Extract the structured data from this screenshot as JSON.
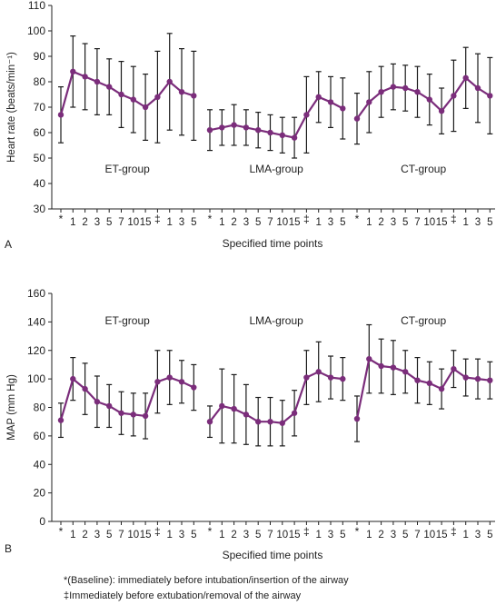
{
  "colors": {
    "series": "#7b2d7b",
    "errorbar": "#1a1a1a",
    "axis": "#222222"
  },
  "tick_labels": [
    "*",
    "1",
    "2",
    "3",
    "5",
    "7",
    "10",
    "15",
    "‡",
    "1",
    "3",
    "5"
  ],
  "chart_data": [
    {
      "type": "line",
      "panel_label": "A",
      "ylabel": "Heart rate (beats/min⁻¹)",
      "xlabel": "Specified time points",
      "ylim": [
        30,
        110
      ],
      "yticks": [
        30,
        40,
        50,
        60,
        70,
        80,
        90,
        100,
        110
      ],
      "grid": false,
      "legend": "none",
      "groups": [
        {
          "name": "ET-group",
          "values": [
            67,
            84,
            82,
            80,
            78,
            75,
            73,
            70,
            74,
            80,
            76,
            74.5
          ],
          "errors": [
            11,
            14,
            13,
            13,
            11,
            13,
            13,
            13,
            18,
            19,
            17,
            17.5
          ]
        },
        {
          "name": "LMA-group",
          "values": [
            61,
            62,
            63,
            62,
            61,
            60,
            59,
            58,
            67,
            74,
            72,
            69.5
          ],
          "errors": [
            8,
            7,
            8,
            7,
            7,
            7,
            7,
            8,
            15,
            10,
            10,
            12
          ]
        },
        {
          "name": "CT-group",
          "values": [
            65.5,
            72,
            76,
            78,
            77.5,
            76,
            73,
            68.5,
            74.5,
            81.5,
            77.5,
            74.5
          ],
          "errors": [
            10,
            12,
            10,
            9,
            9,
            10,
            10,
            9,
            14,
            12,
            13.5,
            15
          ]
        }
      ]
    },
    {
      "type": "line",
      "panel_label": "B",
      "ylabel": "MAP (mm Hg)",
      "xlabel": "Specified time points",
      "ylim": [
        0,
        160
      ],
      "yticks": [
        0,
        20,
        40,
        60,
        80,
        100,
        120,
        140,
        160
      ],
      "grid": false,
      "legend": "none",
      "groups": [
        {
          "name": "ET-group",
          "values": [
            71,
            100,
            93,
            84,
            81,
            76,
            75,
            74,
            98,
            101,
            98,
            94
          ],
          "errors": [
            12,
            15,
            18,
            18,
            15,
            15,
            15,
            16,
            22,
            19,
            15,
            16
          ]
        },
        {
          "name": "LMA-group",
          "values": [
            70,
            81,
            79,
            75,
            70,
            70,
            69,
            76,
            101,
            105,
            101,
            100
          ],
          "errors": [
            11,
            26,
            24,
            21,
            17,
            17,
            16,
            16,
            19,
            21,
            15,
            15
          ]
        },
        {
          "name": "CT-group",
          "values": [
            72,
            114,
            109,
            108,
            105,
            99,
            97,
            93,
            107,
            101,
            100,
            99
          ],
          "errors": [
            16,
            24,
            19,
            19,
            15,
            16,
            15,
            14,
            13,
            13,
            14,
            13
          ]
        }
      ]
    }
  ],
  "footnotes": {
    "baseline": "*(Baseline): immediately before intubation/insertion of the airway",
    "extubation": "‡Immediately before extubation/removal of the airway"
  }
}
